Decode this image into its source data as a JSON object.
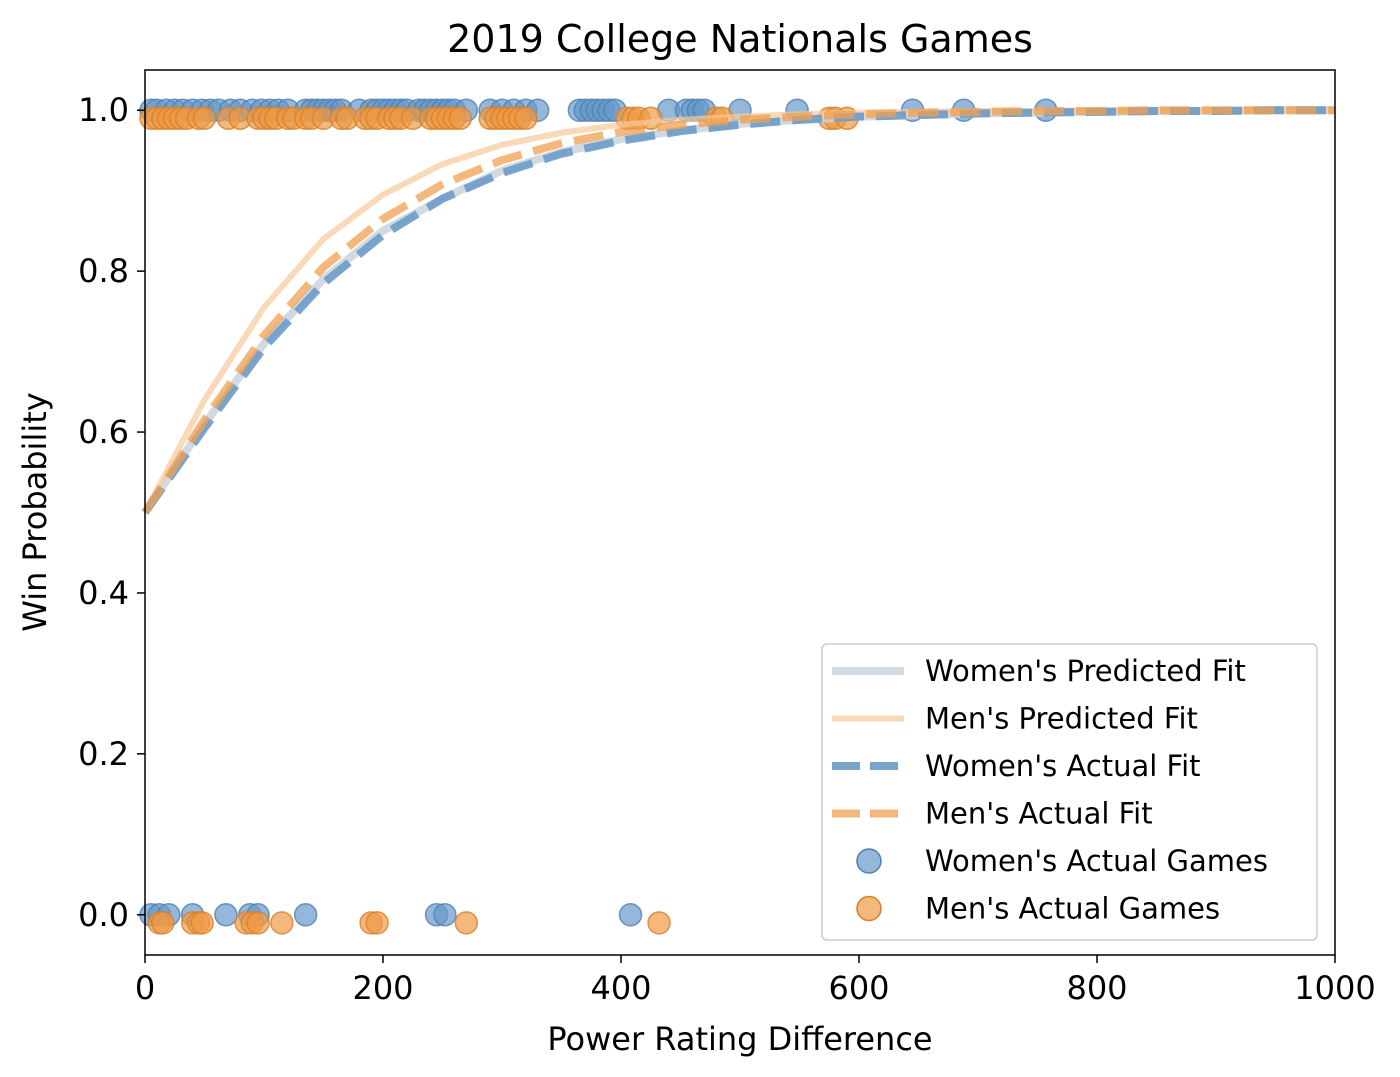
{
  "chart_data": {
    "type": "scatter",
    "title": "2019 College Nationals Games",
    "xlabel": "Power Rating Difference",
    "ylabel": "Win Probability",
    "xlim": [
      0,
      1000
    ],
    "ylim": [
      -0.05,
      1.05
    ],
    "x_ticks": [
      0,
      200,
      400,
      600,
      800,
      1000
    ],
    "y_ticks": [
      0.0,
      0.2,
      0.4,
      0.6,
      0.8,
      1.0
    ],
    "x_tick_labels": [
      "0",
      "200",
      "400",
      "600",
      "800",
      "1000"
    ],
    "y_tick_labels": [
      "0.0",
      "0.2",
      "0.4",
      "0.6",
      "0.8",
      "1.0"
    ],
    "grid": false,
    "legend_position": "bottom-right",
    "colors": {
      "womens_predicted": "#c9d3de",
      "mens_predicted": "#f7c99a",
      "womens_actual": "#6b9bc8",
      "mens_actual": "#f0a050",
      "womens_points": "#6699cc",
      "mens_points": "#f09a45"
    },
    "series": [
      {
        "name": "Women's Predicted Fit",
        "kind": "line",
        "style": "solid",
        "x": [
          0,
          50,
          100,
          150,
          200,
          250,
          300,
          350,
          400,
          450,
          500,
          550,
          600,
          650,
          700,
          750,
          800,
          850,
          900,
          950,
          1000
        ],
        "y": [
          0.5,
          0.61,
          0.71,
          0.79,
          0.85,
          0.89,
          0.925,
          0.948,
          0.964,
          0.975,
          0.983,
          0.988,
          0.992,
          0.994,
          0.996,
          0.997,
          0.998,
          0.999,
          0.999,
          1.0,
          1.0
        ]
      },
      {
        "name": "Men's Predicted Fit",
        "kind": "line",
        "style": "solid",
        "x": [
          0,
          50,
          100,
          150,
          200,
          250,
          300,
          350,
          400,
          450,
          500,
          550,
          600,
          650,
          700,
          750,
          800,
          850,
          900,
          950,
          1000
        ],
        "y": [
          0.5,
          0.64,
          0.755,
          0.84,
          0.895,
          0.933,
          0.957,
          0.972,
          0.982,
          0.988,
          0.992,
          0.995,
          0.997,
          0.998,
          0.999,
          0.999,
          1.0,
          1.0,
          1.0,
          1.0,
          1.0
        ]
      },
      {
        "name": "Women's Actual Fit",
        "kind": "line",
        "style": "dashed",
        "x": [
          0,
          50,
          100,
          150,
          200,
          250,
          300,
          350,
          400,
          450,
          500,
          550,
          600,
          650,
          700,
          750,
          800,
          850,
          900,
          950,
          1000
        ],
        "y": [
          0.5,
          0.605,
          0.705,
          0.785,
          0.845,
          0.89,
          0.922,
          0.946,
          0.962,
          0.974,
          0.982,
          0.988,
          0.992,
          0.994,
          0.996,
          0.997,
          0.998,
          0.999,
          0.999,
          1.0,
          1.0
        ]
      },
      {
        "name": "Men's Actual Fit",
        "kind": "line",
        "style": "dashed",
        "x": [
          0,
          50,
          100,
          150,
          200,
          250,
          300,
          350,
          400,
          450,
          500,
          550,
          600,
          650,
          700,
          750,
          800,
          850,
          900,
          950,
          1000
        ],
        "y": [
          0.5,
          0.615,
          0.72,
          0.805,
          0.865,
          0.908,
          0.938,
          0.959,
          0.973,
          0.982,
          0.988,
          0.992,
          0.995,
          0.997,
          0.998,
          0.999,
          0.999,
          1.0,
          1.0,
          1.0,
          1.0
        ]
      },
      {
        "name": "Women's Actual Games",
        "kind": "points",
        "x": [
          5,
          10,
          18,
          25,
          32,
          40,
          48,
          55,
          62,
          72,
          80,
          90,
          98,
          105,
          112,
          120,
          135,
          140,
          145,
          150,
          155,
          160,
          165,
          180,
          190,
          195,
          200,
          205,
          210,
          215,
          220,
          230,
          235,
          240,
          245,
          250,
          255,
          260,
          270,
          290,
          300,
          310,
          320,
          330,
          365,
          370,
          375,
          380,
          385,
          390,
          395,
          440,
          455,
          460,
          465,
          470,
          500,
          548,
          645,
          688,
          757,
          5,
          12,
          20,
          40,
          68,
          88,
          95,
          135,
          245,
          252,
          408
        ],
        "y": [
          1,
          1,
          1,
          1,
          1,
          1,
          1,
          1,
          1,
          1,
          1,
          1,
          1,
          1,
          1,
          1,
          1,
          1,
          1,
          1,
          1,
          1,
          1,
          1,
          1,
          1,
          1,
          1,
          1,
          1,
          1,
          1,
          1,
          1,
          1,
          1,
          1,
          1,
          1,
          1,
          1,
          1,
          1,
          1,
          1,
          1,
          1,
          1,
          1,
          1,
          1,
          1,
          1,
          1,
          1,
          1,
          1,
          1,
          1,
          1,
          1,
          0,
          0,
          0,
          0,
          0,
          0,
          0,
          0,
          0,
          0,
          0
        ]
      },
      {
        "name": "Men's Actual Games",
        "kind": "points",
        "x": [
          5,
          10,
          15,
          20,
          25,
          30,
          35,
          45,
          50,
          70,
          80,
          95,
          100,
          105,
          110,
          120,
          125,
          135,
          140,
          150,
          165,
          170,
          185,
          190,
          195,
          205,
          210,
          215,
          225,
          240,
          245,
          250,
          255,
          260,
          265,
          290,
          295,
          300,
          305,
          310,
          315,
          320,
          405,
          410,
          415,
          425,
          480,
          485,
          575,
          580,
          590,
          12,
          15,
          40,
          45,
          48,
          85,
          90,
          95,
          115,
          190,
          195,
          270,
          432
        ],
        "y": [
          0.99,
          0.99,
          0.99,
          0.99,
          0.99,
          0.99,
          0.99,
          0.99,
          0.99,
          0.99,
          0.99,
          0.99,
          0.99,
          0.99,
          0.99,
          0.99,
          0.99,
          0.99,
          0.99,
          0.99,
          0.99,
          0.99,
          0.99,
          0.99,
          0.99,
          0.99,
          0.99,
          0.99,
          0.99,
          0.99,
          0.99,
          0.99,
          0.99,
          0.99,
          0.99,
          0.99,
          0.99,
          0.99,
          0.99,
          0.99,
          0.99,
          0.99,
          0.99,
          0.99,
          0.99,
          0.99,
          0.99,
          0.99,
          0.99,
          0.99,
          0.99,
          -0.01,
          -0.01,
          -0.01,
          -0.01,
          -0.01,
          -0.01,
          -0.01,
          -0.01,
          -0.01,
          -0.01,
          -0.01,
          -0.01,
          -0.01
        ]
      }
    ]
  }
}
